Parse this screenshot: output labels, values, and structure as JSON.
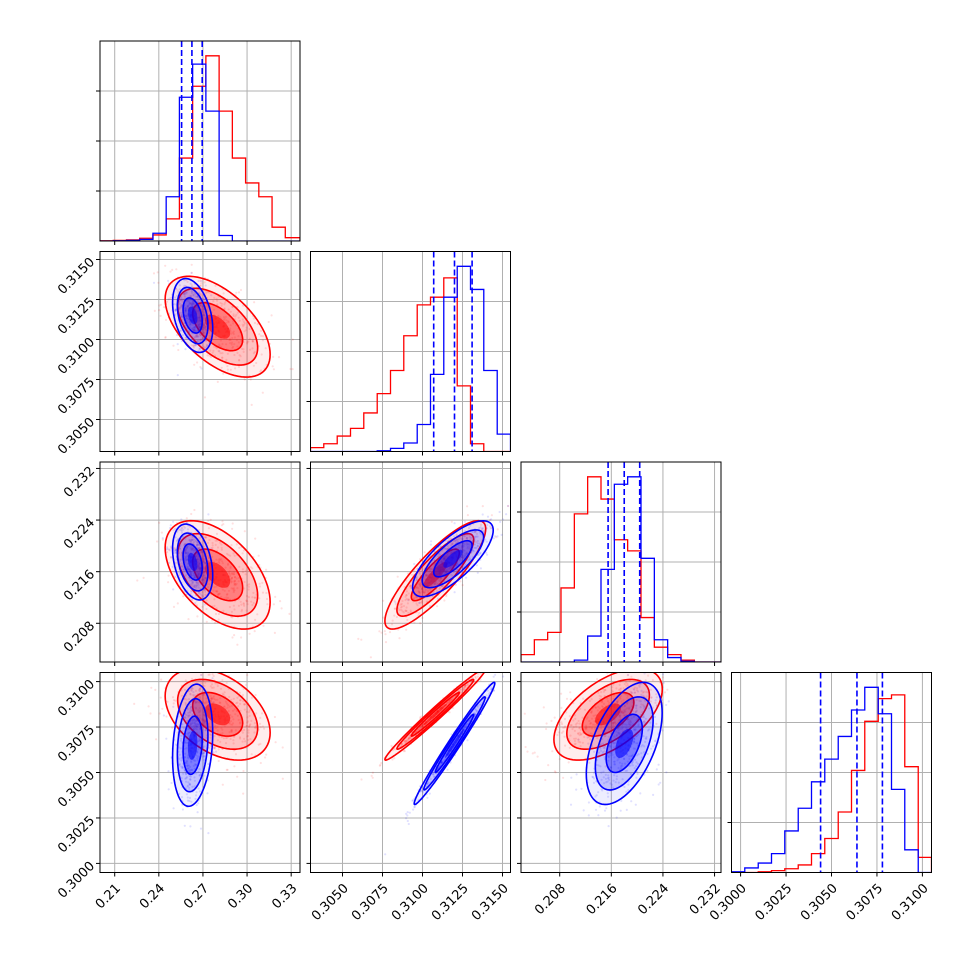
{
  "colors": {
    "series_a": "#0000ff",
    "series_b": "#ff0000",
    "grid": "#b0b0b0"
  },
  "chart_data": {
    "type": "corner",
    "grid": true,
    "parameters": [
      {
        "key": "p0",
        "ticks": [
          "0.21",
          "0.24",
          "0.27",
          "0.30",
          "0.33"
        ],
        "tick_values": [
          0.21,
          0.24,
          0.27,
          0.3,
          0.33
        ],
        "range": [
          0.2,
          0.336
        ]
      },
      {
        "key": "p1",
        "ticks": [
          "0.3050",
          "0.3075",
          "0.3100",
          "0.3125",
          "0.3150"
        ],
        "tick_values": [
          0.305,
          0.3075,
          0.31,
          0.3125,
          0.315
        ],
        "range": [
          0.303,
          0.3155
        ]
      },
      {
        "key": "p2",
        "ticks": [
          "0.208",
          "0.216",
          "0.224",
          "0.232"
        ],
        "tick_values": [
          0.208,
          0.216,
          0.224,
          0.232
        ],
        "range": [
          0.202,
          0.233
        ]
      },
      {
        "key": "p3",
        "ticks": [
          "0.3000",
          "0.3025",
          "0.3050",
          "0.3075",
          "0.3100"
        ],
        "tick_values": [
          0.3,
          0.3025,
          0.305,
          0.3075,
          0.31
        ],
        "range": [
          0.2995,
          0.3105
        ]
      }
    ],
    "series": [
      {
        "color": "#0000ff",
        "marginals": [
          {
            "edges": [
              0.2,
              0.209,
              0.218,
              0.227,
              0.236,
              0.245,
              0.254,
              0.263,
              0.272,
              0.281,
              0.29,
              0.299,
              0.308,
              0.317,
              0.326,
              0.336
            ],
            "counts": [
              0,
              1,
              2,
              6,
              28,
              160,
              520,
              640,
              470,
              20,
              0,
              0,
              0,
              0,
              0
            ],
            "quantiles": [
              0.2555,
              0.2625,
              0.2695
            ]
          },
          {
            "edges": [
              0.303,
              0.30383,
              0.30467,
              0.3055,
              0.30633,
              0.30717,
              0.308,
              0.30883,
              0.30967,
              0.3105,
              0.31133,
              0.31217,
              0.313,
              0.31383,
              0.31467,
              0.3155
            ],
            "counts": [
              0,
              0,
              0,
              0,
              0,
              2,
              8,
              22,
              70,
              200,
              400,
              480,
              420,
              210,
              45
            ],
            "quantiles": [
              0.3107,
              0.312,
              0.3131
            ]
          },
          {
            "edges": [
              0.202,
              0.20407,
              0.20613,
              0.2082,
              0.21027,
              0.21233,
              0.2144,
              0.21647,
              0.21853,
              0.2206,
              0.22267,
              0.22473,
              0.2268,
              0.22887,
              0.23093,
              0.233
            ],
            "counts": [
              0,
              0,
              0,
              0,
              5,
              70,
              250,
              480,
              500,
              280,
              60,
              12,
              2,
              0,
              0
            ],
            "quantiles": [
              0.2155,
              0.218,
              0.2204
            ]
          },
          {
            "edges": [
              0.2995,
              0.30023,
              0.30097,
              0.3017,
              0.30243,
              0.30317,
              0.3039,
              0.30463,
              0.30537,
              0.3061,
              0.30683,
              0.30757,
              0.3083,
              0.30903,
              0.30977,
              0.3105
            ],
            "counts": [
              2,
              12,
              25,
              50,
              110,
              170,
              240,
              300,
              360,
              430,
              490,
              420,
              220,
              60,
              0
            ],
            "quantiles": [
              0.3044,
              0.3064,
              0.3078
            ]
          }
        ],
        "pairs": [
          {
            "x": 0,
            "y": 1,
            "mean": [
              0.263,
              0.3115
            ],
            "sd": [
              0.0065,
              0.0011
            ],
            "rho": -0.35
          },
          {
            "x": 0,
            "y": 2,
            "mean": [
              0.263,
              0.2175
            ],
            "sd": [
              0.0065,
              0.0028
            ],
            "rho": -0.35
          },
          {
            "x": 0,
            "y": 3,
            "mean": [
              0.263,
              0.3065
            ],
            "sd": [
              0.0065,
              0.0016
            ],
            "rho": 0.2
          },
          {
            "x": 1,
            "y": 2,
            "mean": [
              0.3119,
              0.218
            ],
            "sd": [
              0.0012,
              0.0028
            ],
            "rho": 0.75
          },
          {
            "x": 1,
            "y": 3,
            "mean": [
              0.312,
              0.3066
            ],
            "sd": [
              0.0012,
              0.0016
            ],
            "rho": 0.985
          },
          {
            "x": 2,
            "y": 3,
            "mean": [
              0.218,
              0.3066
            ],
            "sd": [
              0.0028,
              0.0016
            ],
            "rho": 0.5
          }
        ]
      },
      {
        "color": "#ff0000",
        "marginals": [
          {
            "edges": [
              0.2,
              0.209,
              0.218,
              0.227,
              0.236,
              0.245,
              0.254,
              0.263,
              0.272,
              0.281,
              0.29,
              0.299,
              0.308,
              0.317,
              0.326,
              0.336
            ],
            "counts": [
              1,
              2,
              4,
              10,
              22,
              80,
              300,
              560,
              670,
              470,
              300,
              210,
              160,
              50,
              12
            ],
            "quantiles": [
              0.2555,
              0.2625,
              0.2695
            ]
          },
          {
            "edges": [
              0.303,
              0.30383,
              0.30467,
              0.3055,
              0.30633,
              0.30717,
              0.308,
              0.30883,
              0.30967,
              0.3105,
              0.31133,
              0.31217,
              0.313,
              0.31383,
              0.31467,
              0.3155
            ],
            "counts": [
              10,
              20,
              40,
              60,
              100,
              150,
              210,
              300,
              380,
              400,
              450,
              170,
              20,
              0,
              0
            ],
            "quantiles": [
              0.3107,
              0.312,
              0.3131
            ]
          },
          {
            "edges": [
              0.202,
              0.20407,
              0.20613,
              0.2082,
              0.21027,
              0.21233,
              0.2144,
              0.21647,
              0.21853,
              0.2206,
              0.22267,
              0.22473,
              0.2268,
              0.22887,
              0.23093,
              0.233
            ],
            "counts": [
              20,
              60,
              80,
              200,
              400,
              500,
              440,
              330,
              300,
              120,
              40,
              20,
              5,
              0,
              0
            ],
            "quantiles": [
              0.2155,
              0.218,
              0.2204
            ]
          },
          {
            "edges": [
              0.2995,
              0.30023,
              0.30097,
              0.3017,
              0.30243,
              0.30317,
              0.3039,
              0.30463,
              0.30537,
              0.3061,
              0.30683,
              0.30757,
              0.3083,
              0.30903,
              0.30977,
              0.3105
            ],
            "counts": [
              0,
              0,
              2,
              5,
              10,
              20,
              50,
              90,
              160,
              270,
              400,
              460,
              470,
              280,
              40
            ],
            "quantiles": [
              0.3044,
              0.3064,
              0.3078
            ]
          }
        ],
        "pairs": [
          {
            "x": 0,
            "y": 1,
            "mean": [
              0.28,
              0.3108
            ],
            "sd": [
              0.017,
              0.0015
            ],
            "rho": -0.55
          },
          {
            "x": 0,
            "y": 2,
            "mean": [
              0.28,
              0.2155
            ],
            "sd": [
              0.017,
              0.004
            ],
            "rho": -0.5
          },
          {
            "x": 0,
            "y": 3,
            "mean": [
              0.28,
              0.3082
            ],
            "sd": [
              0.017,
              0.0012
            ],
            "rho": -0.4
          },
          {
            "x": 1,
            "y": 2,
            "mean": [
              0.3108,
              0.2155
            ],
            "sd": [
              0.0015,
              0.004
            ],
            "rho": 0.85
          },
          {
            "x": 1,
            "y": 3,
            "mean": [
              0.3108,
              0.3082
            ],
            "sd": [
              0.0015,
              0.0012
            ],
            "rho": 0.985
          },
          {
            "x": 2,
            "y": 3,
            "mean": [
              0.2155,
              0.3082
            ],
            "sd": [
              0.004,
              0.0012
            ],
            "rho": 0.55
          }
        ]
      }
    ]
  }
}
